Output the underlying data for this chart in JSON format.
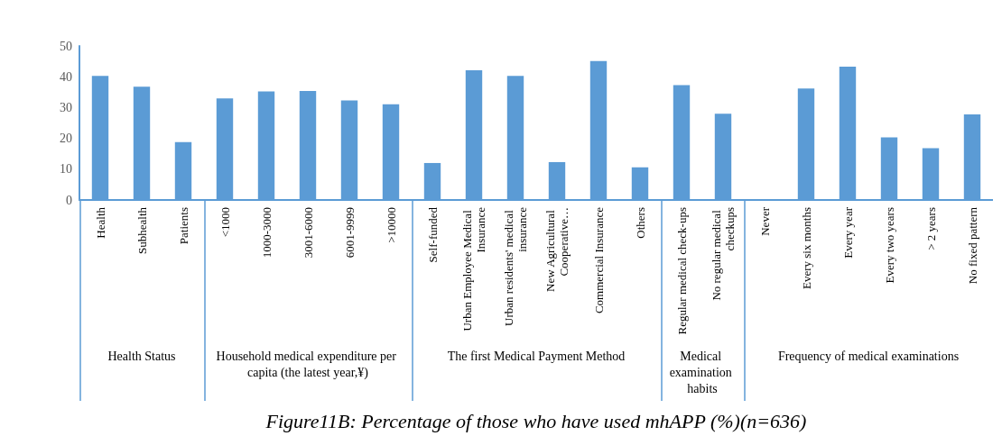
{
  "chart_data": [
    {
      "type": "bar",
      "xlabel": "Health Status",
      "categories": [
        "Health",
        "Subhealth",
        "Patients"
      ],
      "values": [
        40.3,
        36.8,
        18.8
      ],
      "color": "#5b9bd5",
      "ylim": [
        0,
        50
      ],
      "yticks": [
        0,
        10,
        20,
        30,
        40,
        50
      ]
    },
    {
      "type": "bar",
      "xlabel": "Household medical expenditure per capita (the latest year,¥)",
      "categories": [
        "<1000",
        "1000-3000",
        "3001-6000",
        "6001-9999",
        ">10000"
      ],
      "values": [
        33.0,
        35.2,
        35.4,
        32.3,
        31.1
      ],
      "color": "#5b9bd5",
      "ylim": [
        0,
        50
      ],
      "tick_labels": "x"
    },
    {
      "type": "bar",
      "title": "Figure11B: Percentage of those who have used mhAPP (%)(n=636)",
      "xlabel": "The first Medical Payment Method",
      "categories": [
        "Self-funded",
        "Urban Employee Medical Insurance",
        "Urban residents' medical insurance",
        "New Agricultural Cooperative…",
        "Commercial Insurance",
        "Others"
      ],
      "values": [
        12.0,
        42.1,
        40.3,
        12.3,
        45.1,
        10.6
      ],
      "color": "#5b9bd5",
      "ylim": [
        0,
        50
      ],
      "tick_labels": "x"
    },
    {
      "type": "bar",
      "xlabel": "Medical examination habits",
      "categories": [
        "Regular medical check-ups",
        "No regular medical checkups"
      ],
      "values": [
        37.3,
        28.0
      ],
      "color": "#5b9bd5",
      "ylim": [
        0,
        50
      ],
      "tick_labels": "x"
    },
    {
      "type": "bar",
      "xlabel": "Frequency of medical examinations",
      "categories": [
        "Never",
        "Every six months",
        "Every year",
        "Every two years",
        "> 2 years",
        "No fixed pattern"
      ],
      "values": [
        0,
        36.2,
        43.3,
        20.3,
        16.8,
        27.8
      ],
      "color": "#5b9bd5",
      "ylim": [
        0,
        50
      ],
      "tick_labels": "x"
    }
  ]
}
